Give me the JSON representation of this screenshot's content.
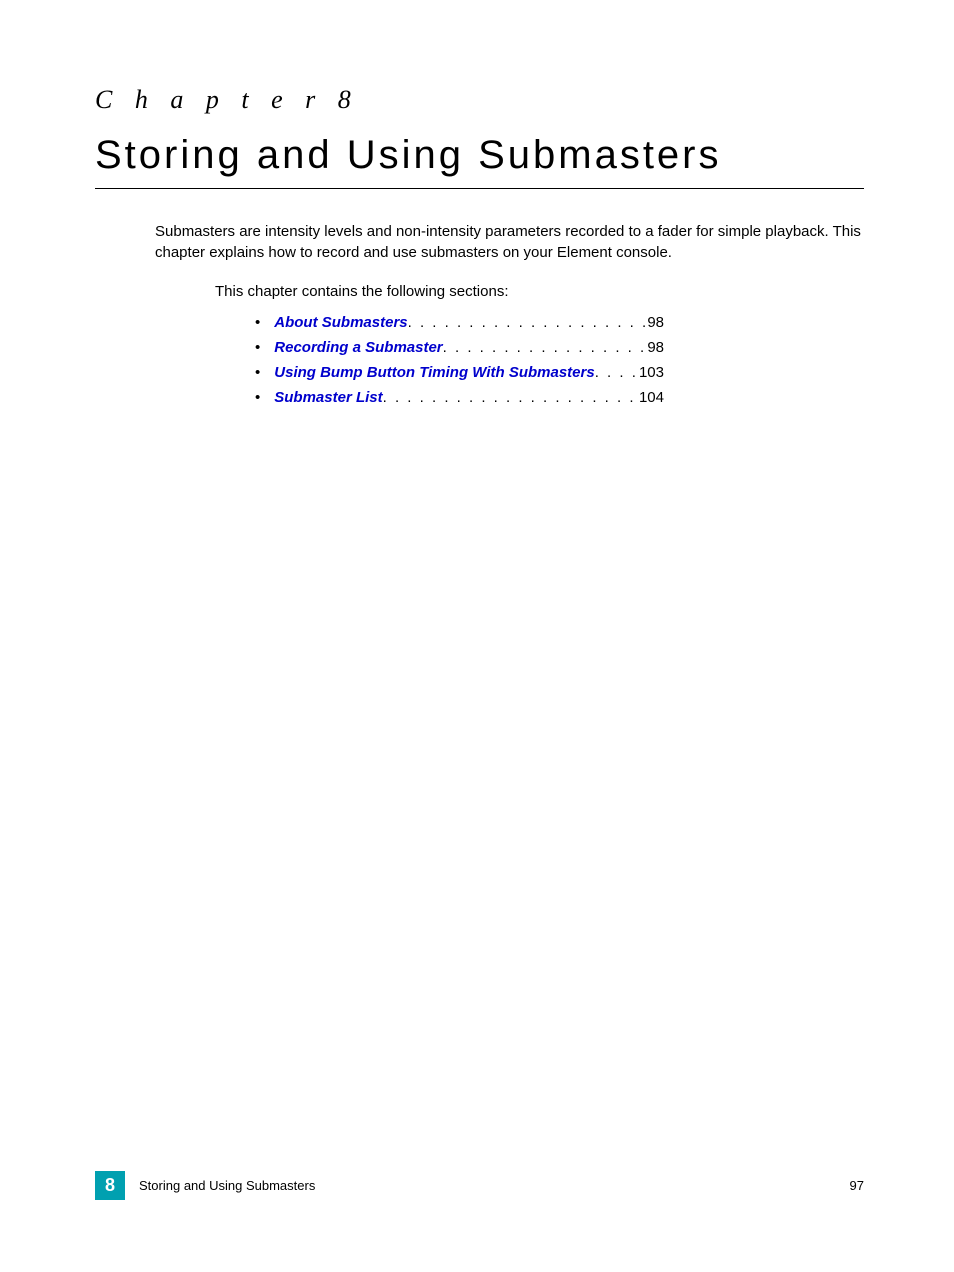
{
  "header": {
    "chapter_label": "C h a p t e r   8",
    "chapter_title": "Storing and Using Submasters"
  },
  "intro": {
    "paragraph": "Submasters are intensity levels and non-intensity parameters recorded to a fader for simple playback. This chapter explains how to record and use submasters on your Element console.",
    "section_intro": "This chapter contains the following sections:"
  },
  "toc": [
    {
      "label": "About Submasters",
      "page": "98"
    },
    {
      "label": "Recording a Submaster",
      "page": "98"
    },
    {
      "label": "Using Bump Button Timing With Submasters",
      "page": "103"
    },
    {
      "label": "Submaster List",
      "page": "104"
    }
  ],
  "footer": {
    "chapter_number": "8",
    "title": "Storing and Using Submasters",
    "page_number": "97"
  },
  "styling": {
    "link_color": "#0000cc",
    "footer_box_color": "#00a0b0",
    "text_color": "#000000",
    "background_color": "#ffffff",
    "chapter_label_fontsize": 26,
    "chapter_title_fontsize": 40,
    "body_fontsize": 15,
    "footer_fontsize": 13
  }
}
